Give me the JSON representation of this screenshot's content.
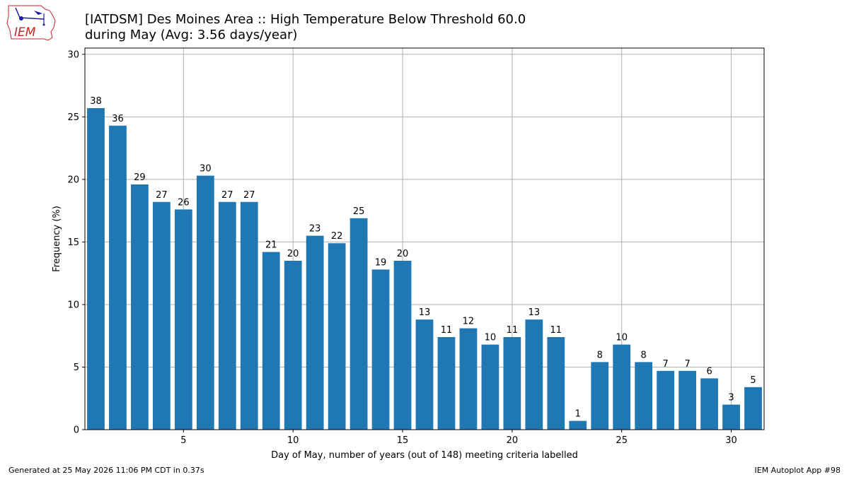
{
  "header": {
    "title_line1": "[IATDSM] Des Moines Area :: High Temperature Below Threshold 60.0",
    "title_line2": "during May (Avg: 3.56 days/year)",
    "logo_text": "IEM"
  },
  "footer": {
    "generated": "Generated at 25 May 2026 11:06 PM CDT in 0.37s",
    "app": "IEM Autoplot App #98"
  },
  "colors": {
    "bar": "#1f77b4",
    "grid": "#b0b0b0",
    "logo_red": "#cc2222",
    "logo_blue": "#1a1aa8"
  },
  "chart_data": {
    "type": "bar",
    "xlabel": "Day of May, number of years (out of 148) meeting criteria labelled",
    "ylabel": "Frequency (%)",
    "xlim": [
      0.5,
      31.5
    ],
    "ylim": [
      0,
      30.5
    ],
    "x_ticks": [
      5,
      10,
      15,
      20,
      25,
      30
    ],
    "y_ticks": [
      0,
      5,
      10,
      15,
      20,
      25,
      30
    ],
    "grid": true,
    "categories": [
      1,
      2,
      3,
      4,
      5,
      6,
      7,
      8,
      9,
      10,
      11,
      12,
      13,
      14,
      15,
      16,
      17,
      18,
      19,
      20,
      21,
      22,
      23,
      24,
      25,
      26,
      27,
      28,
      29,
      30,
      31
    ],
    "years": [
      38,
      36,
      29,
      27,
      26,
      30,
      27,
      27,
      21,
      20,
      23,
      22,
      25,
      19,
      20,
      13,
      11,
      12,
      10,
      11,
      13,
      11,
      1,
      8,
      10,
      8,
      7,
      7,
      6,
      3,
      5
    ],
    "values": [
      25.7,
      24.3,
      19.6,
      18.2,
      17.6,
      20.3,
      18.2,
      18.2,
      14.2,
      13.5,
      15.5,
      14.9,
      16.9,
      12.8,
      13.5,
      8.8,
      7.4,
      8.1,
      6.8,
      7.4,
      8.8,
      7.4,
      0.7,
      5.4,
      6.8,
      5.4,
      4.7,
      4.7,
      4.1,
      2.0,
      3.4
    ]
  }
}
